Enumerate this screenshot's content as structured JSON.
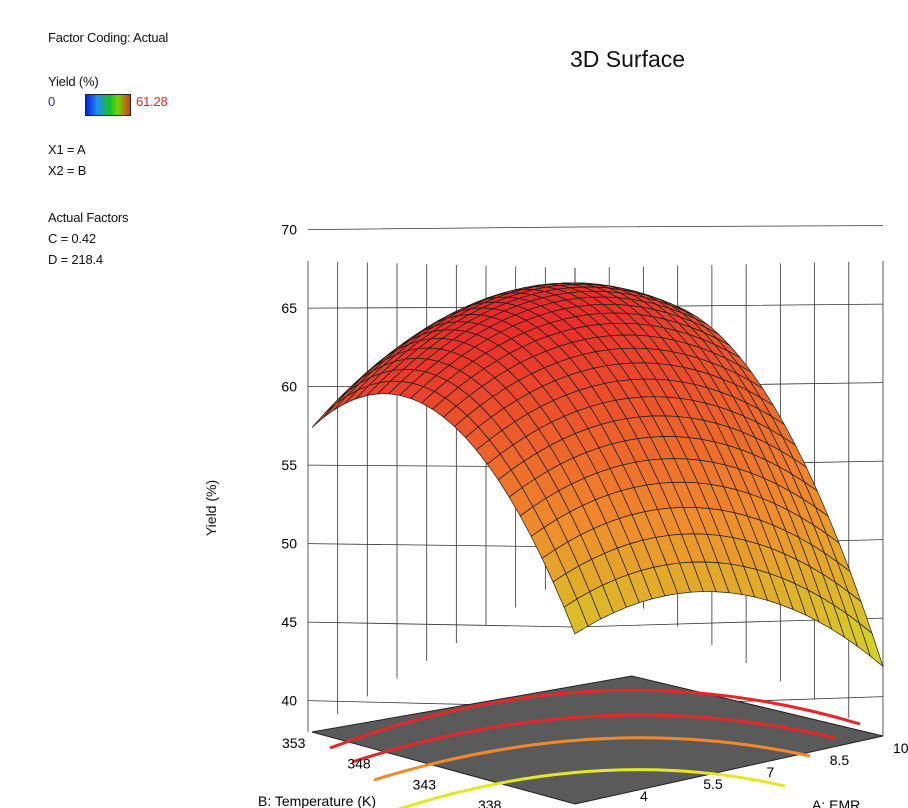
{
  "panel": {
    "factor_coding": "Factor Coding: Actual",
    "response_name": "Yield (%)",
    "legend_min": "0",
    "legend_max": "61.28",
    "x1": "X1 = A",
    "x2": "X2 = B",
    "actual_factors": "Actual Factors",
    "c_value": "C = 0.42",
    "d_value": "D = 218.4"
  },
  "colors": {
    "surface_high": "#e8262a",
    "surface_mid": "#f08a2c",
    "surface_low": "#c8ec26",
    "floor": "#5a5a5a",
    "contour_red": "#e8262a",
    "contour_orange": "#f08a2c",
    "contour_yellow": "#e6e626",
    "legend_min": "#1f2fb3",
    "legend_max": "#e0262a"
  },
  "chart_data": {
    "type": "surface",
    "title": "3D Surface",
    "zlabel": "Yield (%)",
    "xlabel": "A: EMR",
    "ylabel": "B: Temperature (K)",
    "z_ticks": [
      "40",
      "45",
      "50",
      "55",
      "60",
      "65",
      "70"
    ],
    "x_ticks": [
      "4",
      "5.5",
      "7",
      "8.5",
      "10"
    ],
    "y_ticks": [
      "338",
      "343",
      "348",
      "353"
    ],
    "zlim": [
      40,
      70
    ],
    "xlim": [
      4,
      10
    ],
    "ylim": [
      333,
      353
    ],
    "grid": true,
    "surface_model": {
      "form": "z = peak - ka*(A - a0)^2 - kb*(B - b0)^2",
      "peak": 67.5,
      "a0": 6.6,
      "b0": 347.5,
      "ka": 0.54,
      "kb": 0.096
    }
  }
}
